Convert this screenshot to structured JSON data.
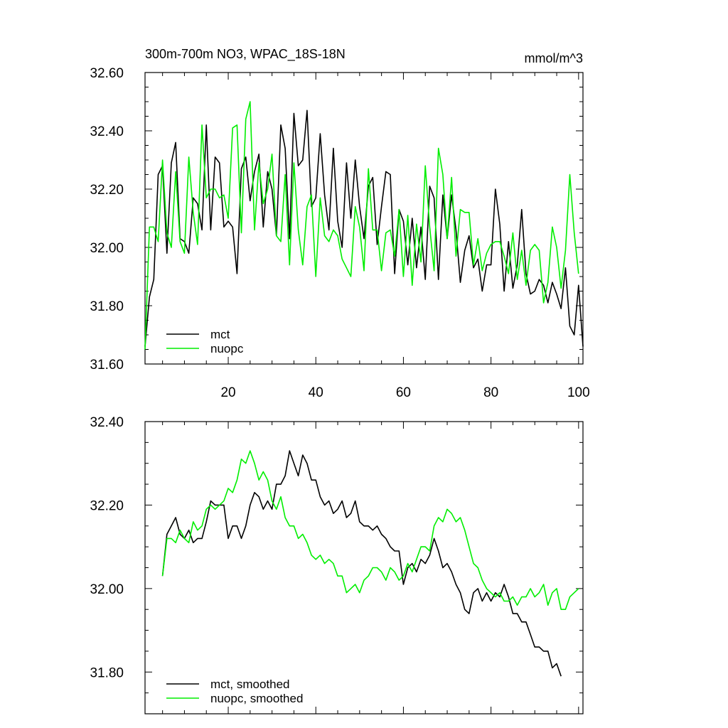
{
  "chart_data": [
    {
      "type": "line",
      "title": "300m-700m NO3, WPAC_18S-18N",
      "units": "mmol/m^3",
      "xlabel": "",
      "ylabel": "",
      "xlim": [
        1,
        101
      ],
      "ylim": [
        31.6,
        32.6
      ],
      "xticks": [
        20,
        40,
        60,
        80,
        100
      ],
      "xtick_labels": [
        "20",
        "40",
        "60",
        "80",
        "100"
      ],
      "yticks": [
        31.6,
        31.8,
        32.0,
        32.2,
        32.4,
        32.6
      ],
      "ytick_labels": [
        "31.60",
        "31.80",
        "32.00",
        "32.20",
        "32.40",
        "32.60"
      ],
      "legend_position": "bottom-left",
      "series": [
        {
          "name": "mct",
          "color": "#000000",
          "x_start": 1,
          "values": [
            31.66,
            31.83,
            31.89,
            32.25,
            32.28,
            31.98,
            32.29,
            32.36,
            32.03,
            32.02,
            31.98,
            32.17,
            32.15,
            32.06,
            32.42,
            32.06,
            32.31,
            32.29,
            32.07,
            32.09,
            32.07,
            31.91,
            32.27,
            32.31,
            32.16,
            32.26,
            32.32,
            32.07,
            32.26,
            32.2,
            32.04,
            32.42,
            32.34,
            32.03,
            32.46,
            32.28,
            32.3,
            32.47,
            32.14,
            32.17,
            32.39,
            32.18,
            32.06,
            32.34,
            32.09,
            32.0,
            32.29,
            32.1,
            32.3,
            32.14,
            32.03,
            32.21,
            32.24,
            32.01,
            32.14,
            32.26,
            32.25,
            31.91,
            32.13,
            32.09,
            31.94,
            32.1,
            31.93,
            32.07,
            31.89,
            32.21,
            32.17,
            31.89,
            32.18,
            32.03,
            32.18,
            32.06,
            31.88,
            31.99,
            32.04,
            31.93,
            31.96,
            31.85,
            31.94,
            31.94,
            32.2,
            32.08,
            31.85,
            32.02,
            31.86,
            31.94,
            32.13,
            31.91,
            31.84,
            31.85,
            31.89,
            31.87,
            31.81,
            31.88,
            31.84,
            31.79,
            31.93,
            31.73,
            31.7,
            31.87,
            31.66
          ]
        },
        {
          "name": "nuopc",
          "color": "#00ee00",
          "x_start": 1,
          "values": [
            31.65,
            32.07,
            32.07,
            32.02,
            32.3,
            32.05,
            32.0,
            32.26,
            32.02,
            31.98,
            32.31,
            32.12,
            32.01,
            32.42,
            32.17,
            32.2,
            32.2,
            32.17,
            32.18,
            32.1,
            32.41,
            32.42,
            32.05,
            32.44,
            32.5,
            32.06,
            32.29,
            32.15,
            32.2,
            32.32,
            32.04,
            32.02,
            32.25,
            31.94,
            32.29,
            32.06,
            31.94,
            32.14,
            32.18,
            31.9,
            32.17,
            32.04,
            32.02,
            32.06,
            32.04,
            31.96,
            31.93,
            31.9,
            32.14,
            32.07,
            31.92,
            32.27,
            32.06,
            32.06,
            31.92,
            32.05,
            32.06,
            31.97,
            32.13,
            31.9,
            32.11,
            31.87,
            32.08,
            31.95,
            32.28,
            32.07,
            31.92,
            32.34,
            32.25,
            32.03,
            32.24,
            31.97,
            32.13,
            32.12,
            32.12,
            31.94,
            32.03,
            31.92,
            31.98,
            32.01,
            32.02,
            32.02,
            31.97,
            31.91,
            32.05,
            31.89,
            31.99,
            31.87,
            31.99,
            32.01,
            31.99,
            31.81,
            31.88,
            32.07,
            32.0,
            31.86,
            31.99,
            32.25,
            32.05,
            31.91
          ]
        }
      ]
    },
    {
      "type": "line",
      "title": "",
      "xlabel": "",
      "ylabel": "",
      "xlim": [
        1,
        101
      ],
      "ylim": [
        31.7,
        32.4
      ],
      "xticks": [
        20,
        40,
        60,
        80,
        100
      ],
      "xtick_labels": [],
      "yticks": [
        31.8,
        32.0,
        32.2,
        32.4
      ],
      "ytick_labels": [
        "31.80",
        "32.00",
        "32.20",
        "32.40"
      ],
      "legend_position": "bottom-left",
      "series": [
        {
          "name": "mct, smoothed",
          "color": "#000000",
          "x_start": 5,
          "values": [
            32.03,
            32.13,
            32.15,
            32.17,
            32.13,
            32.12,
            32.14,
            32.11,
            32.12,
            32.12,
            32.16,
            32.21,
            32.2,
            32.2,
            32.2,
            32.12,
            32.15,
            32.15,
            32.12,
            32.15,
            32.2,
            32.23,
            32.22,
            32.19,
            32.21,
            32.19,
            32.25,
            32.25,
            32.27,
            32.33,
            32.3,
            32.27,
            32.32,
            32.3,
            32.26,
            32.26,
            32.22,
            32.2,
            32.21,
            32.18,
            32.19,
            32.21,
            32.17,
            32.18,
            32.21,
            32.16,
            32.15,
            32.15,
            32.14,
            32.15,
            32.13,
            32.12,
            32.1,
            32.09,
            32.09,
            32.01,
            32.05,
            32.06,
            32.04,
            32.07,
            32.06,
            32.08,
            32.12,
            32.09,
            32.05,
            32.06,
            32.04,
            32.01,
            31.99,
            31.95,
            31.94,
            31.99,
            32.0,
            31.97,
            31.99,
            31.97,
            31.99,
            31.98,
            32.01,
            31.98,
            31.94,
            31.94,
            31.92,
            31.92,
            31.89,
            31.86,
            31.86,
            31.85,
            31.85,
            31.81,
            31.82,
            31.79
          ]
        },
        {
          "name": "nuopc, smoothed",
          "color": "#00ee00",
          "x_start": 5,
          "values": [
            32.03,
            32.12,
            32.12,
            32.11,
            32.14,
            32.12,
            32.11,
            32.16,
            32.14,
            32.15,
            32.19,
            32.2,
            32.19,
            32.2,
            32.21,
            32.24,
            32.23,
            32.26,
            32.31,
            32.3,
            32.33,
            32.3,
            32.26,
            32.28,
            32.26,
            32.21,
            32.19,
            32.22,
            32.17,
            32.15,
            32.15,
            32.12,
            32.13,
            32.11,
            32.08,
            32.07,
            32.08,
            32.06,
            32.07,
            32.06,
            32.03,
            32.03,
            31.99,
            32.0,
            32.01,
            31.99,
            32.02,
            32.03,
            32.05,
            32.05,
            32.04,
            32.02,
            32.05,
            32.04,
            32.02,
            32.03,
            32.06,
            32.04,
            32.07,
            32.1,
            32.1,
            32.09,
            32.15,
            32.17,
            32.16,
            32.19,
            32.18,
            32.16,
            32.17,
            32.14,
            32.1,
            32.06,
            32.05,
            32.02,
            32.0,
            31.99,
            31.98,
            31.99,
            31.97,
            31.97,
            31.98,
            31.96,
            31.98,
            31.98,
            32.0,
            31.98,
            31.99,
            32.01,
            31.96,
            31.99,
            32.0,
            31.95,
            31.95,
            31.98,
            31.99,
            32.0
          ]
        }
      ]
    }
  ]
}
